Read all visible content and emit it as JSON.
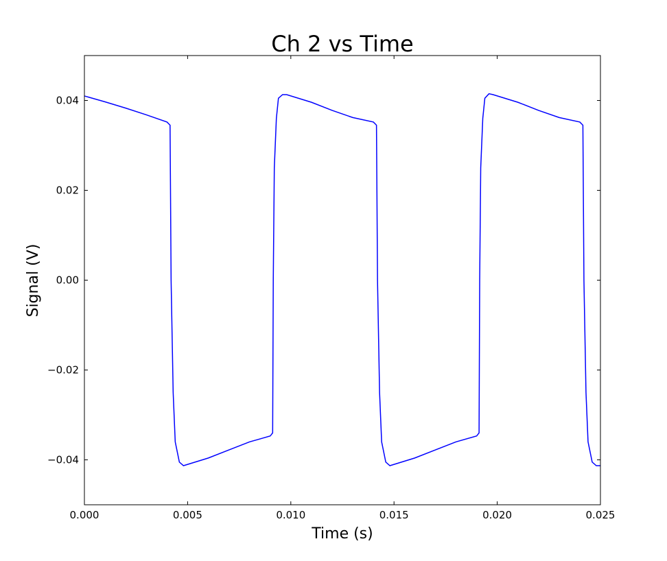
{
  "chart_data": {
    "type": "line",
    "title": "Ch  2 vs Time",
    "xlabel": "Time (s)",
    "ylabel": "Signal (V)",
    "xlim": [
      0.0,
      0.025
    ],
    "ylim": [
      -0.05,
      0.05
    ],
    "grid": false,
    "legend": "none",
    "x_ticks": [
      0.0,
      0.005,
      0.01,
      0.015,
      0.02,
      0.025
    ],
    "x_tick_labels": [
      "0.000",
      "0.005",
      "0.010",
      "0.015",
      "0.020",
      "0.025"
    ],
    "y_ticks": [
      0.04,
      0.02,
      0.0,
      -0.02,
      -0.04
    ],
    "y_tick_labels": [
      "0.04",
      "0.02",
      "0.00",
      "−0.02",
      "−0.04"
    ],
    "series": [
      {
        "color": "#0000ff",
        "x": [
          0.0,
          0.001,
          0.002,
          0.003,
          0.004,
          0.00415,
          0.0042,
          0.0043,
          0.0044,
          0.0046,
          0.0048,
          0.006,
          0.007,
          0.008,
          0.009,
          0.00912,
          0.00915,
          0.0092,
          0.0093,
          0.0094,
          0.0096,
          0.0098,
          0.011,
          0.012,
          0.013,
          0.014,
          0.01415,
          0.0142,
          0.0143,
          0.0144,
          0.0146,
          0.0148,
          0.016,
          0.017,
          0.018,
          0.019,
          0.01912,
          0.01915,
          0.0192,
          0.0193,
          0.0194,
          0.0196,
          0.0198,
          0.021,
          0.022,
          0.023,
          0.024,
          0.02415,
          0.0242,
          0.0243,
          0.0244,
          0.0246,
          0.0248,
          0.025
        ],
        "y": [
          0.041,
          0.0397,
          0.0383,
          0.0368,
          0.0352,
          0.0345,
          0.0,
          -0.025,
          -0.036,
          -0.0405,
          -0.0413,
          -0.0396,
          -0.0378,
          -0.036,
          -0.0347,
          -0.034,
          0.0,
          0.025,
          0.036,
          0.0405,
          0.0413,
          0.0413,
          0.0396,
          0.0378,
          0.0362,
          0.0352,
          0.0345,
          0.0,
          -0.025,
          -0.036,
          -0.0405,
          -0.0413,
          -0.0396,
          -0.0378,
          -0.036,
          -0.0347,
          -0.034,
          0.0,
          0.025,
          0.036,
          0.0405,
          0.0415,
          0.0413,
          0.0396,
          0.0378,
          0.0362,
          0.0352,
          0.0345,
          0.0,
          -0.025,
          -0.036,
          -0.0405,
          -0.0413,
          -0.0413
        ]
      }
    ]
  }
}
